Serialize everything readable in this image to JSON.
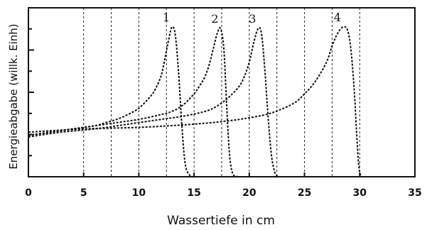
{
  "chart_data": {
    "type": "line",
    "title": "",
    "xlabel": "Wassertiefe in cm",
    "ylabel": "Energieabgabe (willk. Einh)",
    "xlim": [
      0,
      35
    ],
    "ylim": [
      0,
      1.06
    ],
    "x_ticks": [
      0,
      5,
      10,
      15,
      20,
      25,
      30,
      35
    ],
    "x_tick_labels": [
      "0",
      "5",
      "10",
      "15",
      "20",
      "25",
      "30",
      "35"
    ],
    "dashed_verticals": [
      5,
      7.5,
      10,
      12.5,
      15,
      17.5,
      20,
      22.5,
      25,
      27.5,
      30
    ],
    "series": [
      {
        "name": "1",
        "x": [
          0,
          2,
          4,
          6,
          7,
          8,
          9,
          10,
          11,
          11.5,
          12,
          12.3,
          12.7,
          13,
          13.3,
          13.6,
          13.9,
          14.2,
          14.6,
          15
        ],
        "y": [
          0.26,
          0.28,
          0.3,
          0.32,
          0.34,
          0.36,
          0.39,
          0.43,
          0.5,
          0.55,
          0.63,
          0.72,
          0.86,
          0.94,
          0.89,
          0.65,
          0.32,
          0.08,
          0.01,
          0
        ]
      },
      {
        "name": "2",
        "x": [
          0,
          2,
          4,
          6,
          8,
          10,
          12,
          13,
          14,
          15,
          15.5,
          16,
          16.4,
          16.8,
          17.1,
          17.4,
          17.7,
          17.95,
          18.2,
          18.5,
          19
        ],
        "y": [
          0.26,
          0.28,
          0.3,
          0.32,
          0.34,
          0.36,
          0.39,
          0.41,
          0.45,
          0.52,
          0.57,
          0.63,
          0.71,
          0.82,
          0.9,
          0.93,
          0.8,
          0.45,
          0.15,
          0.02,
          0
        ]
      },
      {
        "name": "3",
        "x": [
          0,
          3,
          6,
          9,
          12,
          14,
          16,
          17,
          18,
          19,
          19.5,
          20,
          20.4,
          20.8,
          21.1,
          21.4,
          21.7,
          22,
          22.3,
          22.6
        ],
        "y": [
          0.25,
          0.28,
          0.3,
          0.33,
          0.36,
          0.38,
          0.41,
          0.44,
          0.49,
          0.56,
          0.62,
          0.72,
          0.84,
          0.93,
          0.9,
          0.68,
          0.38,
          0.14,
          0.03,
          0
        ]
      },
      {
        "name": "4",
        "x": [
          0,
          5,
          10,
          15,
          18,
          20,
          22,
          24,
          25,
          26,
          27,
          27.5,
          28,
          28.5,
          28.9,
          29.2,
          29.5,
          29.7,
          29.9,
          30.1
        ],
        "y": [
          0.28,
          0.3,
          0.31,
          0.33,
          0.35,
          0.37,
          0.4,
          0.46,
          0.52,
          0.6,
          0.72,
          0.82,
          0.9,
          0.94,
          0.92,
          0.8,
          0.55,
          0.3,
          0.08,
          0
        ]
      }
    ]
  }
}
